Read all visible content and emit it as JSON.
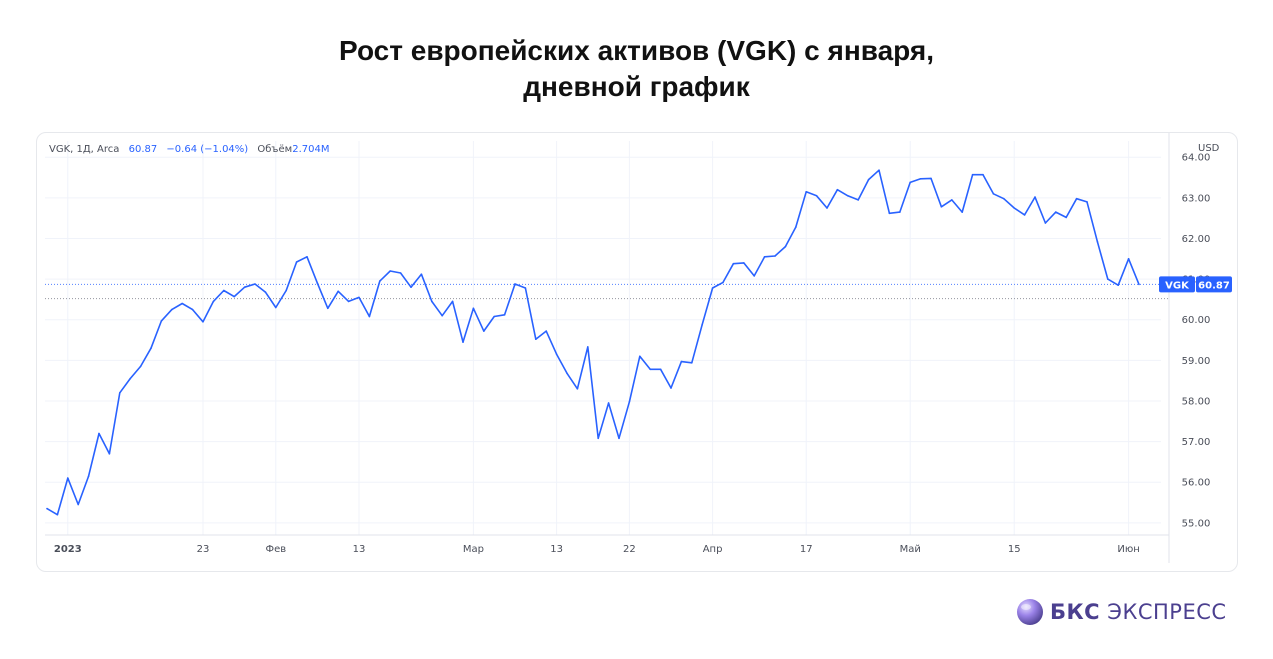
{
  "title": {
    "line1": "Рост европейских активов (VGK) с января,",
    "line2": "дневной график"
  },
  "legend": {
    "symbol": "VGK, 1Д, Arca",
    "last": "60.87",
    "change": "−0.64 (−1.04%)",
    "volume_label": "Объём",
    "volume_value": "2.704M"
  },
  "currency": "USD",
  "price_tag": {
    "symbol": "VGK",
    "value": "60.87"
  },
  "brand": {
    "bold": "БКС",
    "rest": "ЭКСПРЕСС",
    "logo_icon": "bks-sphere-logo"
  },
  "colors": {
    "line": "#2962ff",
    "grid": "#f0f3fa",
    "axis_text": "#4a4e59"
  },
  "chart_data": {
    "type": "line",
    "title": "Рост европейских активов (VGK) с января, дневной график",
    "xlabel": "",
    "ylabel": "USD",
    "ylim": [
      54.7,
      64.4
    ],
    "y_ticks": [
      "55.00",
      "56.00",
      "57.00",
      "58.00",
      "59.00",
      "60.00",
      "61.00",
      "62.00",
      "63.00",
      "64.00"
    ],
    "x_tick_labels": [
      {
        "label": "2023",
        "index": 2
      },
      {
        "label": "23",
        "index": 15
      },
      {
        "label": "Фев",
        "index": 22
      },
      {
        "label": "13",
        "index": 30
      },
      {
        "label": "Мар",
        "index": 41
      },
      {
        "label": "13",
        "index": 49
      },
      {
        "label": "22",
        "index": 56
      },
      {
        "label": "Апр",
        "index": 64
      },
      {
        "label": "17",
        "index": 73
      },
      {
        "label": "Май",
        "index": 83
      },
      {
        "label": "15",
        "index": 93
      },
      {
        "label": "Июн",
        "index": 104
      }
    ],
    "grid": true,
    "reference_lines": [
      60.87,
      60.52
    ],
    "series": [
      {
        "values": [
          55.35,
          55.2,
          56.1,
          55.45,
          56.15,
          57.2,
          56.7,
          58.2,
          58.55,
          58.85,
          59.3,
          59.97,
          60.25,
          60.4,
          60.25,
          59.95,
          60.45,
          60.72,
          60.57,
          60.8,
          60.88,
          60.68,
          60.3,
          60.72,
          61.42,
          61.55,
          60.9,
          60.28,
          60.7,
          60.45,
          60.55,
          60.08,
          60.95,
          61.2,
          61.15,
          60.8,
          61.12,
          60.45,
          60.1,
          60.45,
          59.45,
          60.28,
          59.72,
          60.08,
          60.12,
          60.88,
          60.78,
          59.52,
          59.72,
          59.15,
          58.68,
          58.3,
          59.33,
          57.08,
          57.95,
          57.08,
          57.98,
          59.1,
          58.78,
          58.78,
          58.32,
          58.97,
          58.94,
          59.88,
          60.78,
          60.92,
          61.38,
          61.4,
          61.08,
          61.55,
          61.57,
          61.8,
          62.28,
          63.15,
          63.05,
          62.75,
          63.2,
          63.05,
          62.95,
          63.45,
          63.68,
          62.62,
          62.65,
          63.38,
          63.47,
          63.48,
          62.78,
          62.95,
          62.65,
          63.57,
          63.57,
          63.1,
          62.98,
          62.75,
          62.58,
          63.02,
          62.38,
          62.65,
          62.52,
          62.98,
          62.9,
          61.92,
          61.0,
          60.85,
          61.5,
          60.87
        ]
      }
    ]
  }
}
